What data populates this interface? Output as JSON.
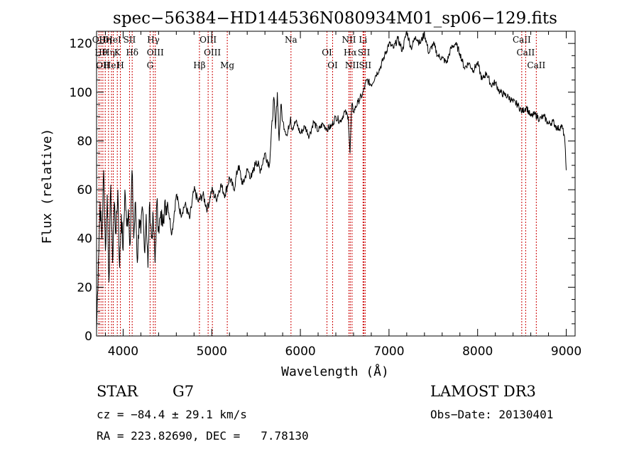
{
  "chart_data": {
    "type": "line",
    "title": "spec−56384−HD144536N080934M01_sp06−129.fits",
    "xlabel": "Wavelength (Å)",
    "ylabel": "Flux (relative)",
    "xlim": [
      3700,
      9100
    ],
    "ylim": [
      0,
      125
    ],
    "x_ticks": [
      4000,
      5000,
      6000,
      7000,
      8000,
      9000
    ],
    "y_ticks": [
      0,
      20,
      40,
      60,
      80,
      100,
      120
    ],
    "series": [
      {
        "name": "spectrum",
        "x": [
          3700,
          3720,
          3740,
          3760,
          3780,
          3800,
          3820,
          3840,
          3860,
          3880,
          3900,
          3920,
          3940,
          3960,
          3980,
          4000,
          4020,
          4040,
          4060,
          4080,
          4100,
          4120,
          4140,
          4160,
          4180,
          4200,
          4220,
          4240,
          4260,
          4280,
          4300,
          4320,
          4340,
          4360,
          4380,
          4400,
          4450,
          4500,
          4550,
          4600,
          4650,
          4700,
          4750,
          4800,
          4850,
          4900,
          4950,
          5000,
          5050,
          5100,
          5150,
          5200,
          5250,
          5300,
          5350,
          5400,
          5450,
          5500,
          5550,
          5600,
          5650,
          5700,
          5720,
          5740,
          5760,
          5780,
          5800,
          5850,
          5890,
          5900,
          5950,
          6000,
          6050,
          6100,
          6150,
          6200,
          6250,
          6300,
          6350,
          6400,
          6450,
          6500,
          6540,
          6560,
          6580,
          6600,
          6650,
          6700,
          6750,
          6800,
          6850,
          6900,
          6950,
          7000,
          7050,
          7100,
          7150,
          7200,
          7250,
          7300,
          7350,
          7400,
          7450,
          7500,
          7550,
          7600,
          7650,
          7700,
          7750,
          7800,
          7850,
          7900,
          7950,
          8000,
          8050,
          8100,
          8150,
          8200,
          8250,
          8300,
          8350,
          8400,
          8450,
          8500,
          8550,
          8600,
          8650,
          8700,
          8750,
          8800,
          8850,
          8900,
          8950,
          8980,
          9000
        ],
        "y": [
          2,
          30,
          55,
          40,
          68,
          35,
          58,
          22,
          62,
          30,
          55,
          42,
          60,
          28,
          50,
          35,
          60,
          45,
          52,
          38,
          68,
          40,
          55,
          30,
          48,
          42,
          52,
          35,
          50,
          28,
          55,
          40,
          48,
          30,
          55,
          45,
          50,
          55,
          42,
          58,
          50,
          54,
          48,
          60,
          55,
          58,
          52,
          60,
          56,
          62,
          58,
          65,
          60,
          70,
          62,
          68,
          65,
          72,
          68,
          75,
          70,
          98,
          85,
          100,
          80,
          95,
          88,
          82,
          90,
          85,
          88,
          83,
          86,
          82,
          88,
          84,
          87,
          85,
          86,
          90,
          88,
          92,
          90,
          75,
          95,
          92,
          96,
          99,
          105,
          103,
          107,
          110,
          115,
          120,
          118,
          122,
          117,
          125,
          118,
          123,
          120,
          124,
          116,
          120,
          115,
          114,
          112,
          118,
          120,
          116,
          110,
          112,
          109,
          112,
          105,
          108,
          103,
          104,
          100,
          99,
          98,
          96,
          95,
          92,
          94,
          90,
          91,
          89,
          90,
          87,
          88,
          85,
          86,
          82,
          68
        ]
      }
    ],
    "lines": [
      {
        "wl": 3727,
        "label": "OII"
      },
      {
        "wl": 3750,
        "label": "Hθ"
      },
      {
        "wl": 3771,
        "label": "OII"
      },
      {
        "wl": 3798,
        "label": "Hη"
      },
      {
        "wl": 3835,
        "label": "Hη"
      },
      {
        "wl": 3869,
        "label": "HeI"
      },
      {
        "wl": 3889,
        "label": "HeI"
      },
      {
        "wl": 3934,
        "label": "K"
      },
      {
        "wl": 3969,
        "label": "H"
      },
      {
        "wl": 4072,
        "label": "SII"
      },
      {
        "wl": 4102,
        "label": "Hδ"
      },
      {
        "wl": 4304,
        "label": "G"
      },
      {
        "wl": 4341,
        "label": "Hγ"
      },
      {
        "wl": 4363,
        "label": "OIII"
      },
      {
        "wl": 4861,
        "label": "Hβ"
      },
      {
        "wl": 4959,
        "label": "OIII"
      },
      {
        "wl": 5007,
        "label": "OIII"
      },
      {
        "wl": 5175,
        "label": "Mg"
      },
      {
        "wl": 5894,
        "label": "Na"
      },
      {
        "wl": 6300,
        "label": "OI"
      },
      {
        "wl": 6364,
        "label": "OI"
      },
      {
        "wl": 6548,
        "label": "NII"
      },
      {
        "wl": 6563,
        "label": "Hα"
      },
      {
        "wl": 6583,
        "label": "NII"
      },
      {
        "wl": 6707,
        "label": "Li"
      },
      {
        "wl": 6717,
        "label": "SII"
      },
      {
        "wl": 6731,
        "label": "SII"
      },
      {
        "wl": 8498,
        "label": "CaII"
      },
      {
        "wl": 8542,
        "label": "CaII"
      },
      {
        "wl": 8662,
        "label": "CaII"
      }
    ]
  },
  "info": {
    "object_class": "STAR",
    "subclass": "G7",
    "survey": "LAMOST DR3",
    "cz": "cz = −84.4 ± 29.1 km/s",
    "obs_date": "Obs−Date: 20130401",
    "coords": "RA = 223.82690, DEC =   7.78130"
  }
}
